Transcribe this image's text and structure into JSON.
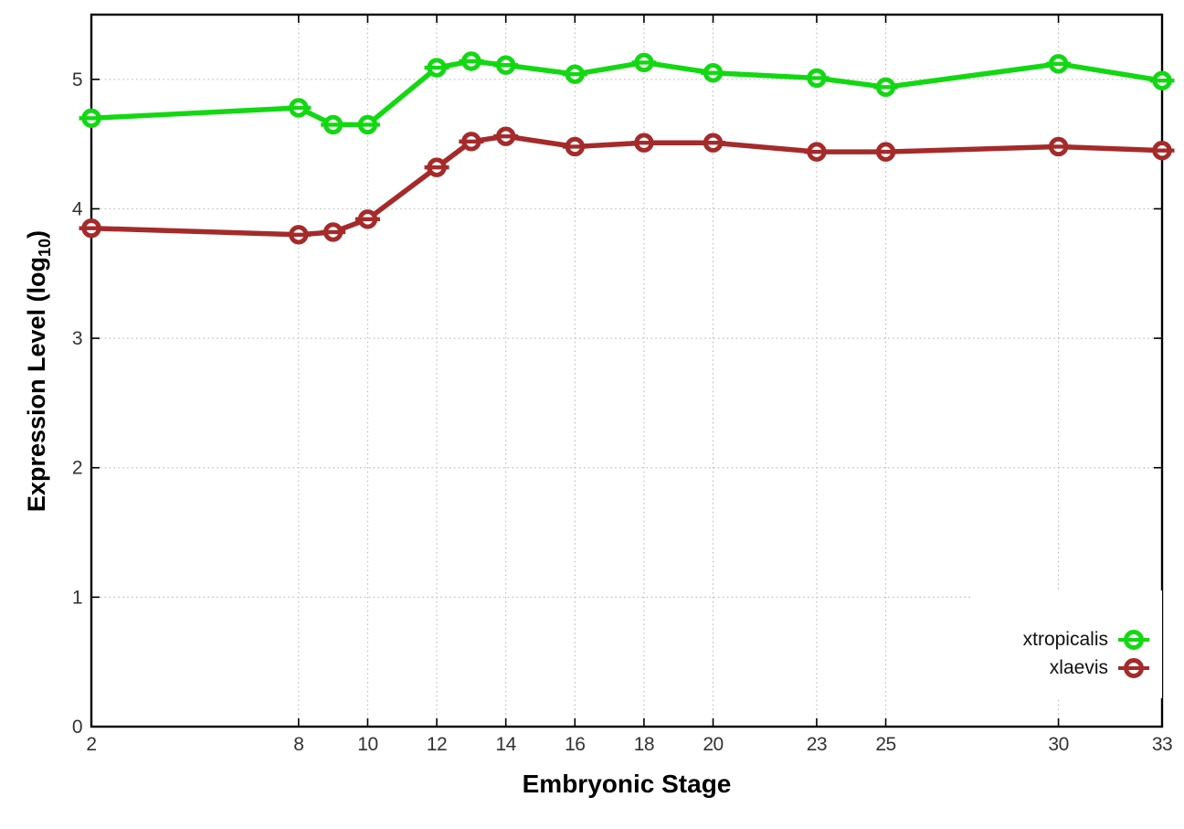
{
  "figure": {
    "xlabel": "Embryonic Stage",
    "ylabel_prefix": "Expression Level (log",
    "ylabel_sub": "10",
    "ylabel_suffix": ")"
  },
  "legend": {
    "position": "inside-right-lower",
    "opaque_background": "#ffffff",
    "entries": [
      {
        "label": "xtropicalis",
        "color": "#12d812"
      },
      {
        "label": "xlaevis",
        "color": "#a52a2a"
      }
    ]
  },
  "colors": {
    "frame": "#000000",
    "grid": "#bcbcbc",
    "tick_text": "#333333"
  },
  "chart_data": {
    "type": "line",
    "title": "",
    "xlabel": "Embryonic Stage",
    "ylabel": "Expression Level (log10)",
    "xlim": [
      2,
      33
    ],
    "ylim": [
      0,
      5.5
    ],
    "grid": true,
    "marker": "open-circle-with-errorbar",
    "x_ticks": [
      2,
      8,
      10,
      12,
      14,
      16,
      18,
      20,
      23,
      25,
      30,
      33
    ],
    "x_tick_labels": [
      "2",
      "8",
      "10",
      "12",
      "14",
      "16",
      "18",
      "20",
      "23",
      "25",
      "30",
      "33"
    ],
    "y_ticks": [
      0,
      1,
      2,
      3,
      4,
      5
    ],
    "y_tick_labels": [
      "0",
      "1",
      "2",
      "3",
      "4",
      "5"
    ],
    "x": [
      2,
      8,
      9,
      10,
      12,
      13,
      14,
      16,
      18,
      20,
      23,
      25,
      30,
      33
    ],
    "series": [
      {
        "name": "xtropicalis",
        "color": "#12d812",
        "values": [
          4.7,
          4.78,
          4.65,
          4.65,
          5.09,
          5.14,
          5.11,
          5.04,
          5.13,
          5.05,
          5.01,
          4.94,
          5.12,
          4.99
        ]
      },
      {
        "name": "xlaevis",
        "color": "#a52a2a",
        "values": [
          3.85,
          3.8,
          3.82,
          3.92,
          4.32,
          4.52,
          4.56,
          4.48,
          4.51,
          4.51,
          4.44,
          4.44,
          4.48,
          4.45
        ]
      }
    ]
  }
}
